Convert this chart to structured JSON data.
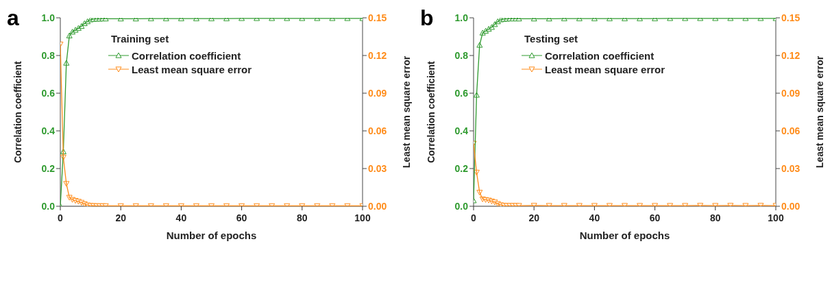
{
  "chart_data": [
    {
      "type": "line",
      "title": "a",
      "legend_title": "Training set",
      "xlabel": "Number of epochs",
      "ylabel": "Correlation coefficient",
      "y2label": "Least mean square error",
      "series": [
        {
          "name": "Correlation coefficient",
          "color": "#2e9a2e",
          "marker": "triangle",
          "x": [
            0,
            1,
            2,
            3,
            4,
            5,
            6,
            7,
            8,
            9,
            10,
            11,
            12,
            13,
            14,
            15,
            20,
            25,
            30,
            35,
            40,
            45,
            50,
            55,
            60,
            65,
            70,
            75,
            80,
            85,
            90,
            95,
            100
          ],
          "values": [
            0.0,
            0.29,
            0.76,
            0.905,
            0.925,
            0.935,
            0.945,
            0.955,
            0.97,
            0.98,
            0.99,
            0.993,
            0.994,
            0.994,
            0.995,
            0.995,
            0.995,
            0.995,
            0.996,
            0.996,
            0.996,
            0.996,
            0.996,
            0.996,
            0.997,
            0.997,
            0.997,
            0.997,
            0.997,
            0.997,
            0.997,
            0.997,
            0.997
          ]
        },
        {
          "name": "Least mean square error",
          "color": "#ff8c1a",
          "marker": "triangle-down",
          "axis": "y2",
          "x": [
            0,
            1,
            2,
            3,
            4,
            5,
            6,
            7,
            8,
            9,
            10,
            11,
            12,
            13,
            14,
            15,
            20,
            25,
            30,
            35,
            40,
            45,
            50,
            55,
            60,
            65,
            70,
            75,
            80,
            85,
            90,
            95,
            100
          ],
          "values": [
            0.129,
            0.039,
            0.018,
            0.007,
            0.0053,
            0.0045,
            0.0038,
            0.003,
            0.0018,
            0.0009,
            0.0005,
            0.0004,
            0.0003,
            0.0003,
            0.0003,
            0.0003,
            0.0003,
            0.0003,
            0.0003,
            0.0003,
            0.0003,
            0.0003,
            0.0003,
            0.0003,
            0.0003,
            0.0003,
            0.0003,
            0.0003,
            0.0003,
            0.0003,
            0.0003,
            0.0003,
            0.0003
          ]
        }
      ],
      "xlim": [
        0,
        100
      ],
      "xticks": [
        0,
        20,
        40,
        60,
        80,
        100
      ],
      "ylim": [
        0,
        1
      ],
      "yticks": [
        {
          "value": 0,
          "label": "0.0"
        },
        {
          "value": 0.2,
          "label": "0.2"
        },
        {
          "value": 0.4,
          "label": "0.4"
        },
        {
          "value": 0.6,
          "label": "0.6"
        },
        {
          "value": 0.8,
          "label": "0.8"
        },
        {
          "value": 1,
          "label": "1.0"
        }
      ],
      "y2lim": [
        0,
        0.15
      ],
      "y2ticks": [
        {
          "value": 0,
          "label": "0.00"
        },
        {
          "value": 0.03,
          "label": "0.03"
        },
        {
          "value": 0.06,
          "label": "0.06"
        },
        {
          "value": 0.09,
          "label": "0.09"
        },
        {
          "value": 0.12,
          "label": "0.12"
        },
        {
          "value": 0.15,
          "label": "0.15"
        }
      ],
      "legend": "top",
      "line_style": "solid"
    },
    {
      "type": "line",
      "title": "b",
      "legend_title": "Testing set",
      "xlabel": "Number of epochs",
      "ylabel": "Correlation coefficient",
      "y2label": "Least mean square error",
      "series": [
        {
          "name": "Correlation coefficient",
          "color": "#2e9a2e",
          "marker": "triangle",
          "x": [
            0,
            1,
            2,
            3,
            4,
            5,
            6,
            7,
            8,
            9,
            10,
            11,
            12,
            13,
            14,
            15,
            20,
            25,
            30,
            35,
            40,
            45,
            50,
            55,
            60,
            65,
            70,
            75,
            80,
            85,
            90,
            95,
            100
          ],
          "values": [
            0.03,
            0.59,
            0.855,
            0.92,
            0.93,
            0.94,
            0.95,
            0.965,
            0.98,
            0.99,
            0.993,
            0.994,
            0.995,
            0.995,
            0.995,
            0.995,
            0.995,
            0.995,
            0.996,
            0.996,
            0.996,
            0.996,
            0.996,
            0.996,
            0.996,
            0.997,
            0.997,
            0.997,
            0.997,
            0.997,
            0.997,
            0.997,
            0.997
          ]
        },
        {
          "name": "Least mean square error",
          "color": "#ff8c1a",
          "marker": "triangle-down",
          "axis": "y2",
          "x": [
            0,
            1,
            2,
            3,
            4,
            5,
            6,
            7,
            8,
            9,
            10,
            11,
            12,
            13,
            14,
            15,
            20,
            25,
            30,
            35,
            40,
            45,
            50,
            55,
            60,
            65,
            70,
            75,
            80,
            85,
            90,
            95,
            100
          ],
          "values": [
            0.05,
            0.027,
            0.011,
            0.0057,
            0.0052,
            0.0048,
            0.004,
            0.0033,
            0.002,
            0.001,
            0.0006,
            0.0005,
            0.0005,
            0.0005,
            0.0005,
            0.0005,
            0.0006,
            0.0005,
            0.0005,
            0.0005,
            0.0005,
            0.0005,
            0.0005,
            0.0005,
            0.0005,
            0.0005,
            0.0005,
            0.0006,
            0.0005,
            0.0006,
            0.0005,
            0.0006,
            0.0005
          ]
        }
      ],
      "xlim": [
        0,
        100
      ],
      "xticks": [
        0,
        20,
        40,
        60,
        80,
        100
      ],
      "ylim": [
        0,
        1
      ],
      "yticks": [
        {
          "value": 0,
          "label": "0.0"
        },
        {
          "value": 0.2,
          "label": "0.2"
        },
        {
          "value": 0.4,
          "label": "0.4"
        },
        {
          "value": 0.6,
          "label": "0.6"
        },
        {
          "value": 0.8,
          "label": "0.8"
        },
        {
          "value": 1,
          "label": "1.0"
        }
      ],
      "y2lim": [
        0,
        0.15
      ],
      "y2ticks": [
        {
          "value": 0,
          "label": "0.00"
        },
        {
          "value": 0.03,
          "label": "0.03"
        },
        {
          "value": 0.06,
          "label": "0.06"
        },
        {
          "value": 0.09,
          "label": "0.09"
        },
        {
          "value": 0.12,
          "label": "0.12"
        },
        {
          "value": 0.15,
          "label": "0.15"
        }
      ],
      "legend": "top",
      "line_style": "solid"
    }
  ]
}
